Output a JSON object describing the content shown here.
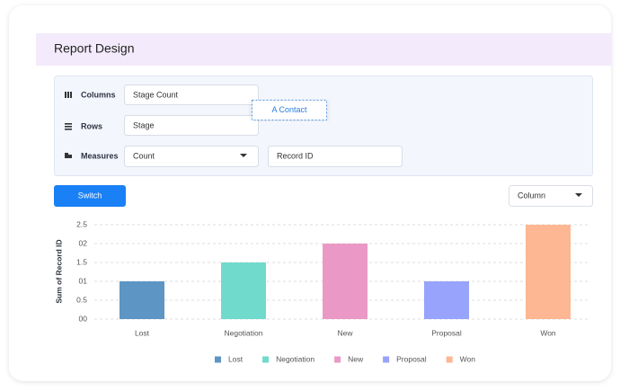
{
  "header": {
    "title": "Report Design"
  },
  "form": {
    "columns_label": "Columns",
    "columns_value": "Stage Count",
    "drag_item": "A Contact",
    "rows_label": "Rows",
    "rows_value": "Stage",
    "measures_label": "Measures",
    "measures_value": "Count",
    "measures_field": "Record ID"
  },
  "toolbar": {
    "button": "Switch",
    "chart_type": "Column"
  },
  "chart_data": {
    "type": "bar",
    "ylabel": "Sum of Record ID",
    "categories": [
      "Lost",
      "Negotiation",
      "New",
      "Proposal",
      "Won"
    ],
    "values": [
      1,
      1.5,
      2,
      1,
      2.5
    ],
    "colors": [
      "#5d95c5",
      "#70dacd",
      "#ea99c6",
      "#98a3fb",
      "#fdb792"
    ],
    "ylim": [
      0,
      2.5
    ],
    "yticks": [
      {
        "value": 0,
        "label": "00"
      },
      0.5,
      {
        "value": 1,
        "label": "01"
      },
      1.5,
      {
        "value": 2,
        "label": "02"
      },
      2.5
    ],
    "grid": true,
    "legend": "bottom"
  }
}
